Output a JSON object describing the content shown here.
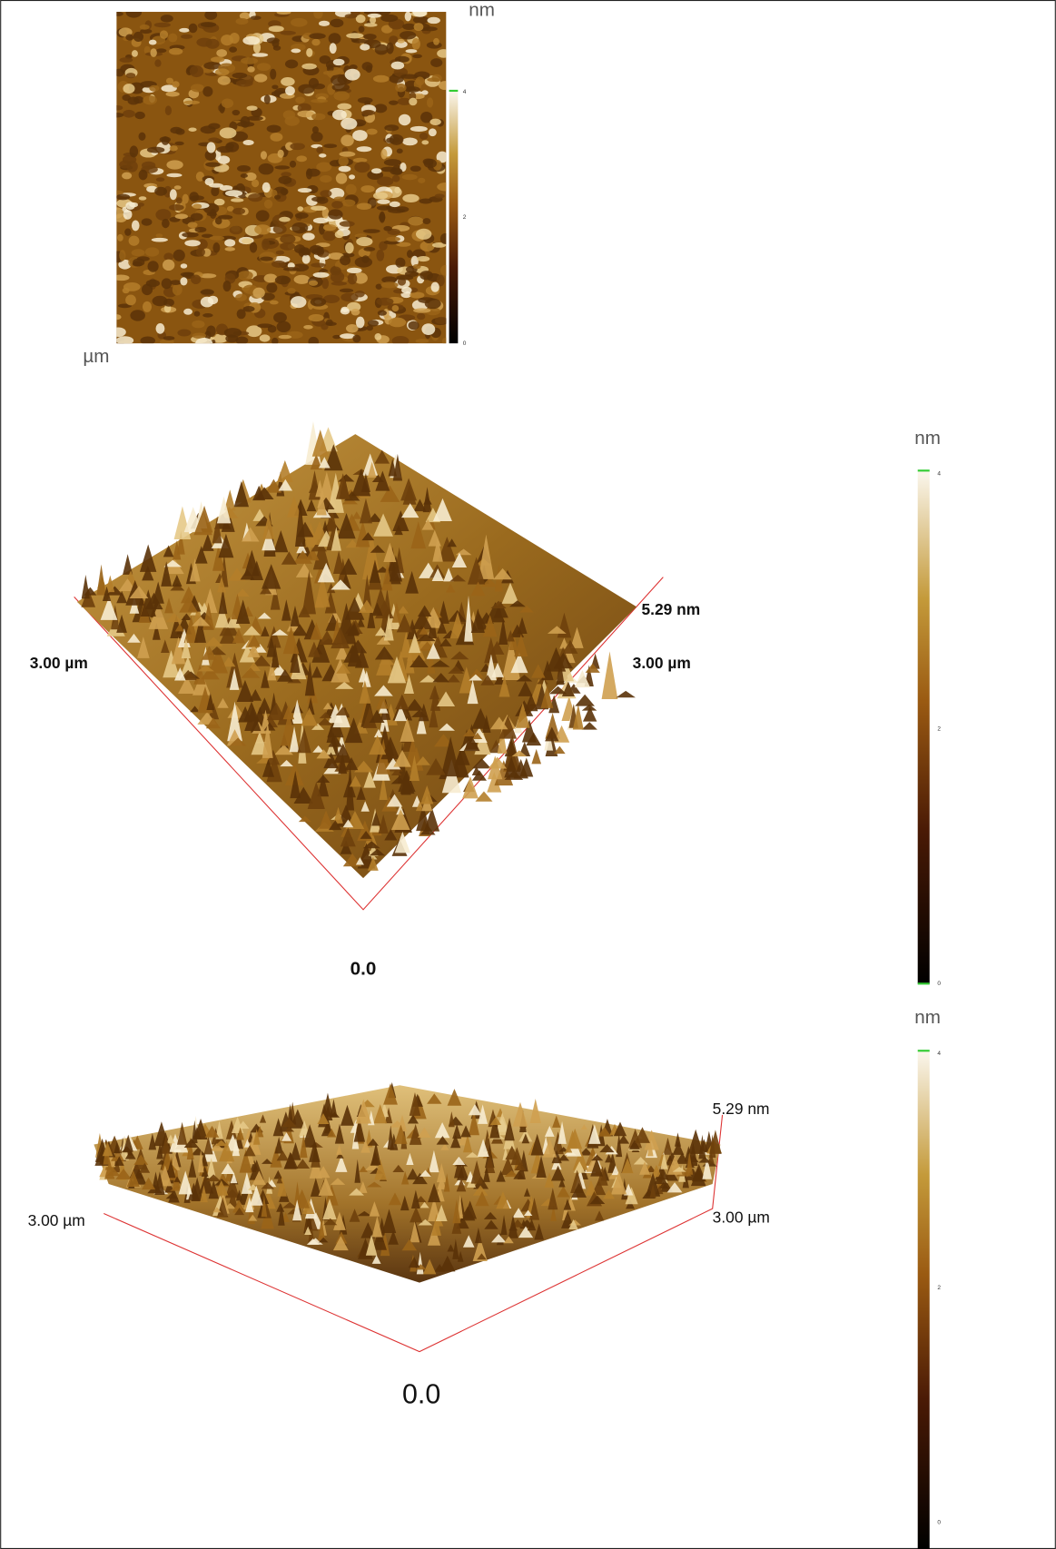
{
  "panels": [
    {
      "unit": "nm",
      "axis_unit": "µm",
      "colorbar_ticks": [
        "4",
        "2",
        "0"
      ]
    },
    {
      "unit": "nm",
      "x_length": "3.00 µm",
      "y_length": "3.00 µm",
      "z_max": "5.29 nm",
      "z_min": "0.0",
      "colorbar_ticks": [
        "4",
        "2",
        "0"
      ]
    },
    {
      "unit": "nm",
      "x_length": "3.00 µm",
      "y_length": "3.00 µm",
      "z_max": "5.29 nm",
      "z_min": "0.0",
      "colorbar_ticks": [
        "4",
        "2",
        "0"
      ]
    }
  ]
}
